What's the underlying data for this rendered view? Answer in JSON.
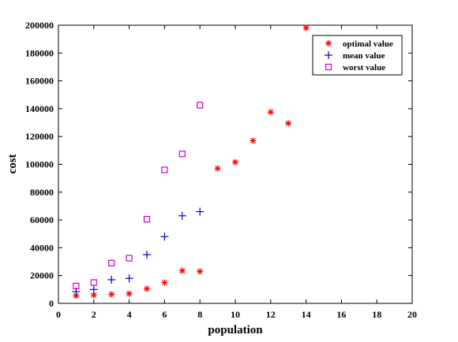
{
  "chart_data": {
    "type": "scatter",
    "xlabel": "population",
    "ylabel": "cost",
    "xlim": [
      0,
      20
    ],
    "ylim": [
      0,
      200000
    ],
    "x_ticks": [
      0,
      2,
      4,
      6,
      8,
      10,
      12,
      14,
      16,
      18,
      20
    ],
    "y_ticks": [
      0,
      20000,
      40000,
      60000,
      80000,
      100000,
      120000,
      140000,
      160000,
      180000,
      200000
    ],
    "grid": false,
    "legend_position": "top-right",
    "series": [
      {
        "name": "optimal value",
        "marker": "asterisk",
        "color": "#ff0000",
        "x": [
          1,
          2,
          3,
          4,
          5,
          6,
          7,
          8,
          9,
          10,
          11,
          12,
          13,
          14
        ],
        "y": [
          5500,
          6000,
          6500,
          7000,
          10500,
          15000,
          23500,
          23000,
          97000,
          101500,
          117000,
          137500,
          129500,
          198000
        ]
      },
      {
        "name": "mean value",
        "marker": "plus",
        "color": "#0000cc",
        "x": [
          1,
          2,
          3,
          4,
          5,
          6,
          7,
          8
        ],
        "y": [
          8500,
          10000,
          17000,
          18000,
          35000,
          48000,
          63000,
          66000
        ]
      },
      {
        "name": "worst value",
        "marker": "square",
        "color": "#cc00cc",
        "x": [
          1,
          2,
          3,
          4,
          5,
          6,
          7,
          8
        ],
        "y": [
          12500,
          15000,
          29000,
          32500,
          60500,
          96000,
          107500,
          142500
        ]
      }
    ]
  }
}
